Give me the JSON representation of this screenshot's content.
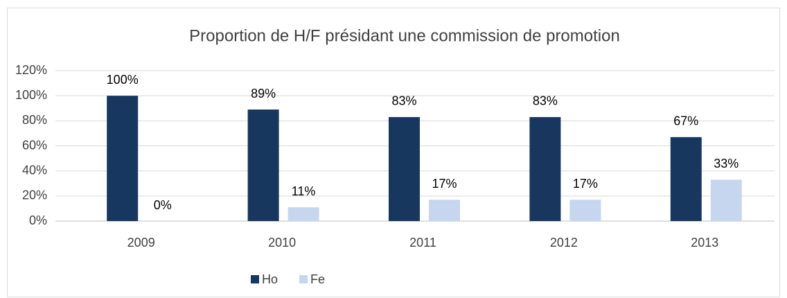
{
  "chart_data": {
    "type": "bar",
    "title": "Proportion de H/F présidant une commission de promotion",
    "categories": [
      "2009",
      "2010",
      "2011",
      "2012",
      "2013"
    ],
    "series": [
      {
        "name": "Ho",
        "color": "#17375e",
        "values": [
          100,
          89,
          83,
          83,
          67
        ],
        "value_labels": [
          "100%",
          "89%",
          "83%",
          "83%",
          "67%"
        ]
      },
      {
        "name": "Fe",
        "color": "#c6d6ef",
        "values": [
          0,
          11,
          17,
          17,
          33
        ],
        "value_labels": [
          "0%",
          "11%",
          "17%",
          "17%",
          "33%"
        ]
      }
    ],
    "ylim": [
      0,
      120
    ],
    "yticks": [
      {
        "value": 0,
        "label": "0%"
      },
      {
        "value": 20,
        "label": "20%"
      },
      {
        "value": 40,
        "label": "40%"
      },
      {
        "value": 60,
        "label": "60%"
      },
      {
        "value": 80,
        "label": "80%"
      },
      {
        "value": 100,
        "label": "100%"
      },
      {
        "value": 120,
        "label": "120%"
      }
    ],
    "grid": true,
    "legend": "bottom"
  }
}
